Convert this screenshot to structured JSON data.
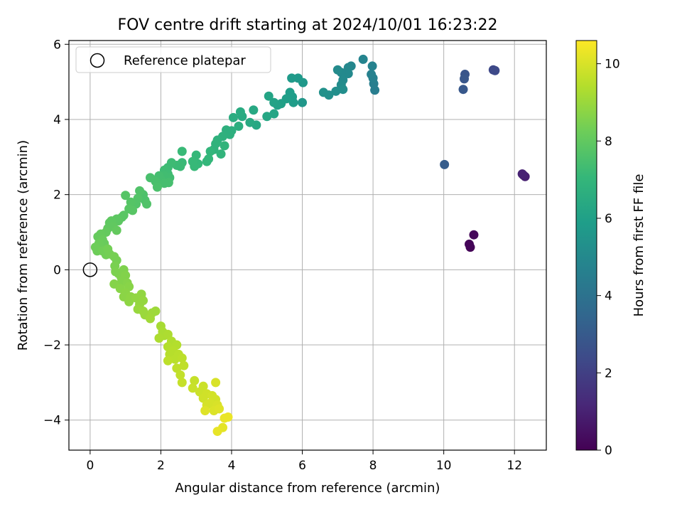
{
  "chart_data": {
    "type": "scatter",
    "title": "FOV centre drift starting at 2024/10/01 16:23:22",
    "xlabel": "Angular distance from reference (arcmin)",
    "ylabel": "Rotation from reference (arcmin)",
    "xlim": [
      -0.6,
      12.9
    ],
    "ylim": [
      -4.8,
      6.1
    ],
    "xticks": [
      0,
      2,
      4,
      6,
      8,
      10,
      12
    ],
    "yticks": [
      -4,
      -2,
      0,
      2,
      4,
      6
    ],
    "grid": true,
    "legend": {
      "placement": "top-left",
      "entries": [
        "Reference platepar"
      ]
    },
    "reference_point": {
      "x": 0,
      "y": 0,
      "label": "Reference platepar"
    },
    "colorbar": {
      "label": "Hours from first FF file",
      "colormap": "viridis",
      "range": [
        0,
        10.6
      ],
      "ticks": [
        0,
        2,
        4,
        6,
        8,
        10
      ]
    },
    "series": [
      {
        "color_value_name": "hours",
        "points": [
          [
            10.75,
            0.6,
            0.1
          ],
          [
            10.72,
            0.68,
            0.12
          ],
          [
            10.85,
            0.93,
            0.2
          ],
          [
            12.25,
            2.52,
            0.9
          ],
          [
            12.3,
            2.48,
            0.95
          ],
          [
            12.22,
            2.55,
            1.0
          ],
          [
            11.4,
            5.32,
            2.3
          ],
          [
            11.45,
            5.3,
            2.35
          ],
          [
            10.6,
            5.2,
            2.8
          ],
          [
            10.58,
            5.08,
            2.85
          ],
          [
            10.55,
            4.8,
            2.9
          ],
          [
            10.02,
            2.8,
            3.1
          ],
          [
            8.05,
            4.78,
            4.5
          ],
          [
            8.02,
            4.95,
            4.55
          ],
          [
            8.0,
            5.1,
            4.6
          ],
          [
            7.95,
            5.2,
            4.65
          ],
          [
            7.98,
            5.42,
            4.7
          ],
          [
            7.72,
            5.6,
            4.8
          ],
          [
            7.38,
            5.42,
            4.9
          ],
          [
            7.3,
            5.38,
            4.95
          ],
          [
            7.3,
            5.22,
            5.0
          ],
          [
            7.1,
            5.25,
            5.0
          ],
          [
            7.15,
            5.05,
            5.05
          ],
          [
            7.0,
            5.32,
            5.1
          ],
          [
            7.1,
            4.92,
            5.15
          ],
          [
            7.15,
            4.8,
            5.2
          ],
          [
            6.95,
            4.75,
            5.25
          ],
          [
            6.75,
            4.65,
            5.3
          ],
          [
            6.6,
            4.72,
            5.35
          ],
          [
            6.0,
            4.45,
            5.6
          ],
          [
            6.02,
            4.98,
            5.65
          ],
          [
            5.88,
            5.1,
            5.7
          ],
          [
            5.7,
            5.1,
            5.75
          ],
          [
            5.75,
            4.45,
            5.8
          ],
          [
            5.72,
            4.6,
            5.85
          ],
          [
            5.65,
            4.72,
            5.9
          ],
          [
            5.55,
            4.55,
            5.95
          ],
          [
            5.4,
            4.42,
            6.0
          ],
          [
            5.3,
            4.38,
            6.05
          ],
          [
            5.2,
            4.45,
            6.1
          ],
          [
            5.05,
            4.62,
            6.15
          ],
          [
            5.2,
            4.15,
            6.2
          ],
          [
            5.0,
            4.08,
            6.25
          ],
          [
            4.7,
            3.85,
            6.3
          ],
          [
            4.62,
            4.25,
            6.35
          ],
          [
            4.52,
            3.92,
            6.4
          ],
          [
            4.3,
            4.08,
            6.45
          ],
          [
            4.25,
            4.2,
            6.5
          ],
          [
            4.05,
            4.05,
            6.55
          ],
          [
            4.2,
            3.82,
            6.6
          ],
          [
            4.0,
            3.7,
            6.65
          ],
          [
            3.95,
            3.6,
            6.7
          ],
          [
            3.85,
            3.72,
            6.7
          ],
          [
            3.75,
            3.55,
            6.75
          ],
          [
            3.6,
            3.45,
            6.8
          ],
          [
            3.55,
            3.35,
            6.85
          ],
          [
            3.5,
            3.2,
            6.85
          ],
          [
            3.7,
            3.08,
            6.9
          ],
          [
            3.8,
            3.3,
            6.9
          ],
          [
            3.4,
            3.15,
            6.95
          ],
          [
            3.35,
            2.95,
            7.0
          ],
          [
            3.3,
            2.88,
            7.0
          ],
          [
            3.0,
            3.05,
            7.05
          ],
          [
            3.05,
            2.82,
            7.05
          ],
          [
            2.95,
            2.75,
            7.1
          ],
          [
            2.9,
            2.88,
            7.1
          ],
          [
            2.6,
            3.15,
            7.15
          ],
          [
            2.6,
            2.85,
            7.15
          ],
          [
            2.55,
            2.75,
            7.2
          ],
          [
            2.45,
            2.78,
            7.2
          ],
          [
            2.3,
            2.85,
            7.25
          ],
          [
            2.2,
            2.72,
            7.25
          ],
          [
            2.1,
            2.65,
            7.3
          ],
          [
            2.2,
            2.55,
            7.3
          ],
          [
            2.25,
            2.45,
            7.35
          ],
          [
            2.1,
            2.5,
            7.35
          ],
          [
            2.0,
            2.4,
            7.4
          ],
          [
            1.95,
            2.5,
            7.4
          ],
          [
            2.22,
            2.32,
            7.45
          ],
          [
            2.1,
            2.3,
            7.45
          ],
          [
            1.85,
            2.35,
            7.5
          ],
          [
            1.7,
            2.45,
            7.5
          ],
          [
            1.9,
            2.2,
            7.55
          ],
          [
            1.5,
            2.0,
            7.6
          ],
          [
            1.55,
            1.85,
            7.6
          ],
          [
            1.6,
            1.75,
            7.65
          ],
          [
            1.4,
            2.1,
            7.65
          ],
          [
            1.35,
            1.9,
            7.7
          ],
          [
            1.3,
            1.75,
            7.7
          ],
          [
            1.15,
            1.8,
            7.75
          ],
          [
            1.0,
            1.98,
            7.75
          ],
          [
            1.1,
            1.62,
            7.8
          ],
          [
            1.2,
            1.58,
            7.8
          ],
          [
            0.95,
            1.45,
            7.85
          ],
          [
            0.9,
            1.4,
            7.85
          ],
          [
            0.75,
            1.35,
            7.9
          ],
          [
            0.8,
            1.3,
            7.9
          ],
          [
            0.6,
            1.3,
            7.95
          ],
          [
            0.55,
            1.25,
            7.95
          ],
          [
            0.65,
            1.15,
            8.0
          ],
          [
            0.5,
            1.1,
            8.0
          ],
          [
            0.75,
            1.05,
            8.05
          ],
          [
            0.45,
            1.0,
            8.05
          ],
          [
            0.3,
            0.95,
            8.1
          ],
          [
            0.22,
            0.88,
            8.1
          ],
          [
            0.35,
            0.8,
            8.15
          ],
          [
            0.4,
            0.7,
            8.15
          ],
          [
            0.25,
            0.7,
            8.2
          ],
          [
            0.3,
            0.6,
            8.2
          ],
          [
            0.15,
            0.6,
            8.25
          ],
          [
            0.2,
            0.5,
            8.25
          ],
          [
            0.35,
            0.5,
            8.3
          ],
          [
            0.45,
            0.4,
            8.3
          ],
          [
            0.5,
            0.55,
            8.35
          ],
          [
            0.55,
            0.42,
            8.35
          ],
          [
            0.68,
            0.35,
            8.4
          ],
          [
            0.75,
            0.25,
            8.4
          ],
          [
            0.7,
            0.1,
            8.45
          ],
          [
            0.72,
            -0.05,
            8.5
          ],
          [
            0.8,
            -0.1,
            8.5
          ],
          [
            0.88,
            -0.2,
            8.55
          ],
          [
            0.95,
            0.0,
            8.55
          ],
          [
            1.0,
            -0.15,
            8.6
          ],
          [
            0.9,
            -0.3,
            8.6
          ],
          [
            0.68,
            -0.38,
            8.65
          ],
          [
            1.05,
            -0.35,
            8.65
          ],
          [
            1.1,
            -0.45,
            8.7
          ],
          [
            0.85,
            -0.5,
            8.7
          ],
          [
            1.0,
            -0.62,
            8.75
          ],
          [
            0.95,
            -0.72,
            8.75
          ],
          [
            1.15,
            -0.72,
            8.8
          ],
          [
            1.1,
            -0.85,
            8.8
          ],
          [
            1.3,
            -0.75,
            8.85
          ],
          [
            1.45,
            -0.65,
            8.85
          ],
          [
            1.4,
            -0.92,
            8.9
          ],
          [
            1.5,
            -0.82,
            8.9
          ],
          [
            1.35,
            -1.05,
            8.95
          ],
          [
            1.5,
            -1.1,
            9.0
          ],
          [
            1.55,
            -1.2,
            9.0
          ],
          [
            1.75,
            -1.15,
            9.05
          ],
          [
            1.85,
            -1.1,
            9.05
          ],
          [
            1.7,
            -1.3,
            9.1
          ],
          [
            2.0,
            -1.5,
            9.2
          ],
          [
            2.05,
            -1.65,
            9.25
          ],
          [
            2.1,
            -1.75,
            9.25
          ],
          [
            2.2,
            -1.72,
            9.3
          ],
          [
            1.95,
            -1.82,
            9.3
          ],
          [
            2.3,
            -1.9,
            9.35
          ],
          [
            2.2,
            -2.05,
            9.4
          ],
          [
            2.45,
            -2.0,
            9.4
          ],
          [
            2.35,
            -2.15,
            9.45
          ],
          [
            2.25,
            -2.25,
            9.45
          ],
          [
            2.5,
            -2.25,
            9.5
          ],
          [
            2.4,
            -2.38,
            9.5
          ],
          [
            2.2,
            -2.42,
            9.55
          ],
          [
            2.6,
            -2.35,
            9.55
          ],
          [
            2.65,
            -2.55,
            9.6
          ],
          [
            2.45,
            -2.62,
            9.6
          ],
          [
            2.55,
            -2.8,
            9.65
          ],
          [
            2.95,
            -2.95,
            9.7
          ],
          [
            2.6,
            -3.0,
            9.7
          ],
          [
            2.9,
            -3.15,
            9.75
          ],
          [
            3.2,
            -3.1,
            9.8
          ],
          [
            3.1,
            -3.25,
            9.8
          ],
          [
            3.3,
            -3.3,
            9.85
          ],
          [
            3.2,
            -3.42,
            9.85
          ],
          [
            3.45,
            -3.35,
            9.9
          ],
          [
            3.55,
            -3.45,
            9.9
          ],
          [
            3.4,
            -3.55,
            9.95
          ],
          [
            3.3,
            -3.6,
            9.95
          ],
          [
            3.55,
            -3.0,
            10.0
          ],
          [
            3.6,
            -3.6,
            10.0
          ],
          [
            3.5,
            -3.75,
            10.05
          ],
          [
            3.25,
            -3.75,
            10.1
          ],
          [
            3.65,
            -3.7,
            10.1
          ],
          [
            3.75,
            -4.2,
            10.2
          ],
          [
            3.6,
            -4.3,
            10.25
          ],
          [
            3.9,
            -3.92,
            10.3
          ],
          [
            3.8,
            -3.95,
            10.3
          ]
        ]
      }
    ]
  }
}
